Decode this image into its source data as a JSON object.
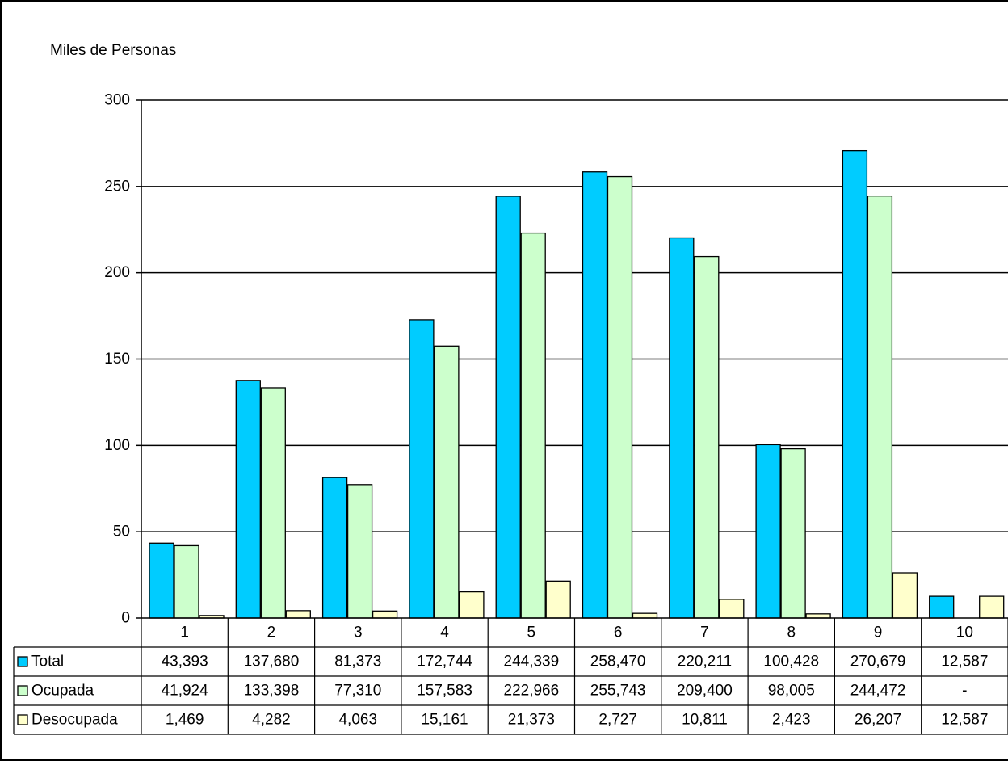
{
  "chart_data": {
    "type": "bar",
    "ylabel": "Miles de Personas",
    "ylim": [
      0,
      300
    ],
    "yticks": [
      "0",
      "50",
      "100",
      "150",
      "200",
      "250",
      "300"
    ],
    "grid": true,
    "legend_placement": "data-table",
    "categories": [
      "1",
      "2",
      "3",
      "4",
      "5",
      "6",
      "7",
      "8",
      "9",
      "10"
    ],
    "series": [
      {
        "name": "Total",
        "color": "#00CCFF",
        "values": [
          43.393,
          137.68,
          81.373,
          172.744,
          244.339,
          258.47,
          220.211,
          100.428,
          270.679,
          12.587
        ],
        "labels": [
          "43,393",
          "137,680",
          "81,373",
          "172,744",
          "244,339",
          "258,470",
          "220,211",
          "100,428",
          "270,679",
          "12,587"
        ]
      },
      {
        "name": "Ocupada",
        "color": "#CCFFCC",
        "values": [
          41.924,
          133.398,
          77.31,
          157.583,
          222.966,
          255.743,
          209.4,
          98.005,
          244.472,
          0
        ],
        "labels": [
          "41,924",
          "133,398",
          "77,310",
          "157,583",
          "222,966",
          "255,743",
          "209,400",
          "98,005",
          "244,472",
          "-"
        ]
      },
      {
        "name": "Desocupada",
        "color": "#FFFFCC",
        "values": [
          1.469,
          4.282,
          4.063,
          15.161,
          21.373,
          2.727,
          10.811,
          2.423,
          26.207,
          12.587
        ],
        "labels": [
          "1,469",
          "4,282",
          "4,063",
          "15,161",
          "21,373",
          "2,727",
          "10,811",
          "2,423",
          "26,207",
          "12,587"
        ]
      }
    ]
  }
}
